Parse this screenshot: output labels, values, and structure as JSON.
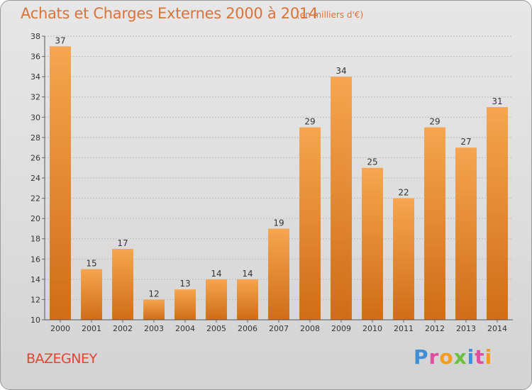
{
  "header": {
    "title": "Achats et Charges Externes 2000 à 2014",
    "subtitle": "(en milliers d'€)"
  },
  "footer": {
    "commune": "BAZEGNEY",
    "brand_letters": [
      "P",
      "r",
      "o",
      "x",
      "i",
      "t",
      "i"
    ],
    "brand_colors": [
      "#3f8fd6",
      "#e04f9f",
      "#f39c1e",
      "#6abf3b",
      "#3f8fd6",
      "#e04f9f",
      "#f39c1e"
    ]
  },
  "colors": {
    "bar_top": "#f6a550",
    "bar_bottom": "#cf6d18",
    "title": "#d8743b",
    "commune": "#e0452f"
  },
  "chart_data": {
    "type": "bar",
    "categories": [
      "2000",
      "2001",
      "2002",
      "2003",
      "2004",
      "2005",
      "2006",
      "2007",
      "2008",
      "2009",
      "2010",
      "2011",
      "2012",
      "2013",
      "2014"
    ],
    "values": [
      37,
      15,
      17,
      12,
      13,
      14,
      14,
      19,
      29,
      34,
      25,
      22,
      29,
      27,
      31
    ],
    "title": "Achats et Charges Externes 2000 à 2014",
    "ylim": [
      10,
      38
    ],
    "yticks": [
      10,
      12,
      14,
      16,
      18,
      20,
      22,
      24,
      26,
      28,
      30,
      32,
      34,
      36,
      38
    ],
    "grid": true,
    "legend": "none"
  }
}
